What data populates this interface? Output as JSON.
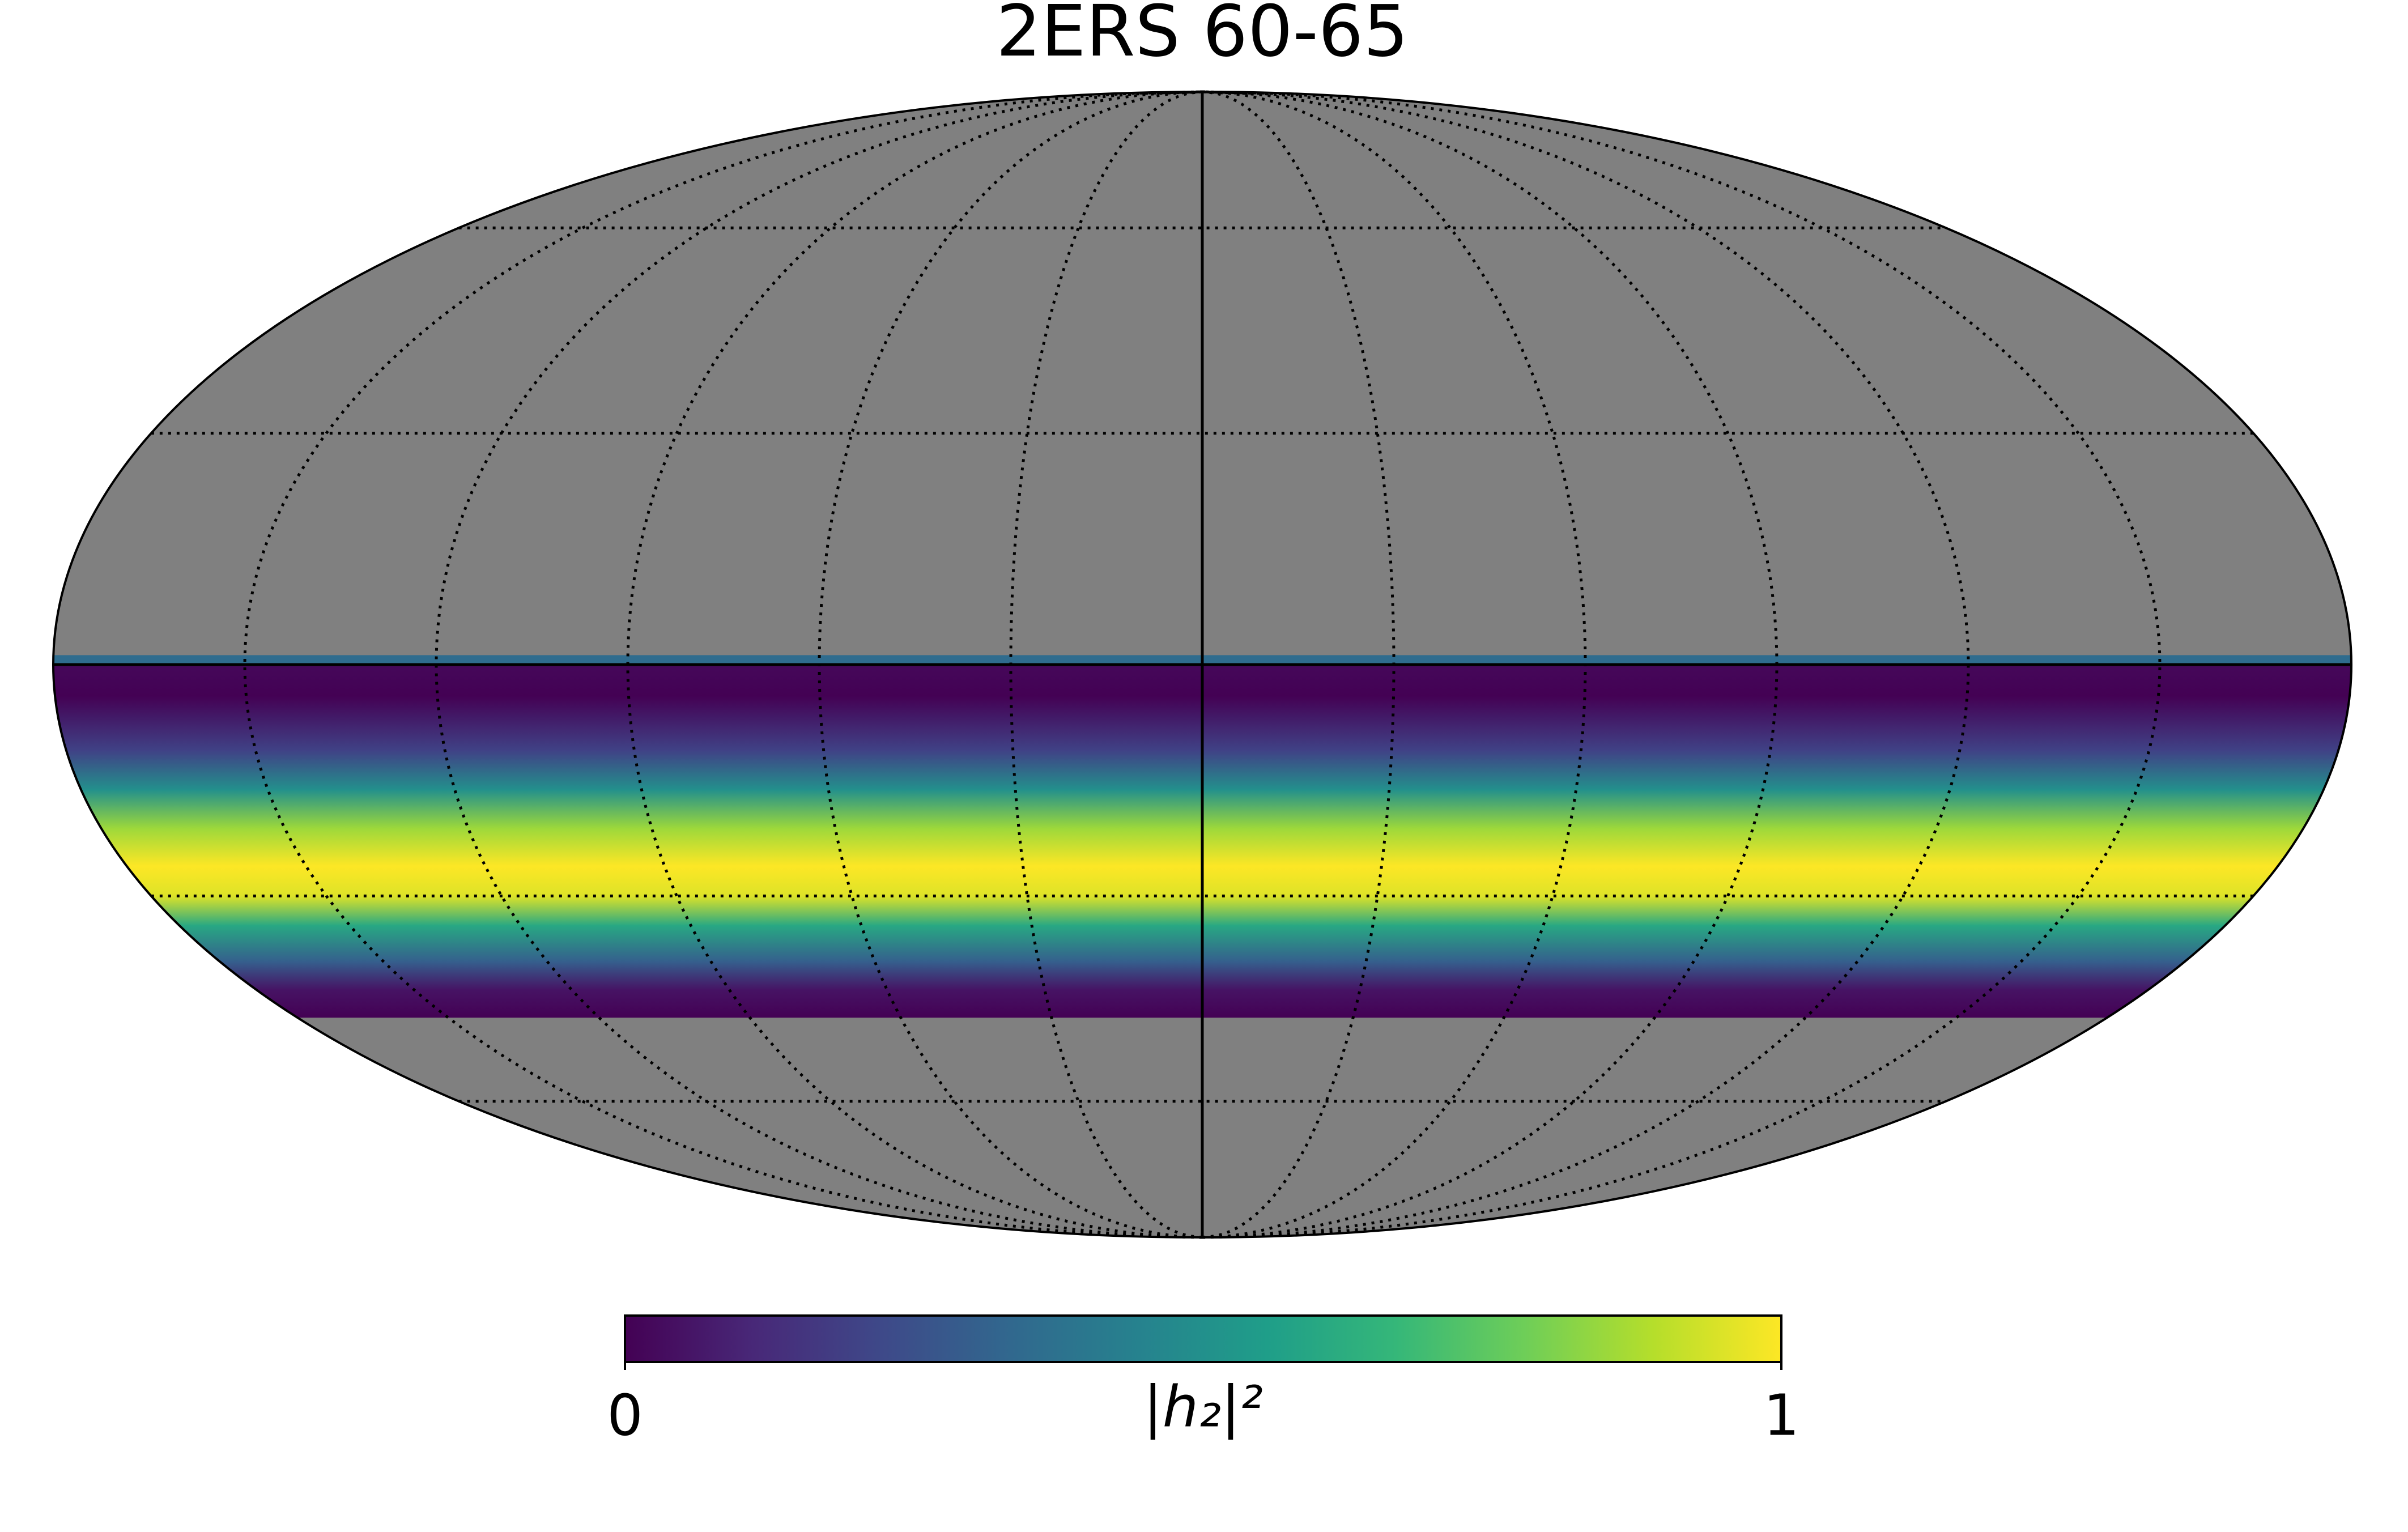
{
  "chart_data": {
    "type": "mollweide",
    "title": "2ERS 60-65",
    "projection": "mollweide",
    "background_color": "#808080",
    "graticule": true,
    "graticule_step": 30,
    "colormap": "viridis",
    "latitudes": [
      1.2,
      0.1,
      0,
      -4,
      -11,
      -16,
      -21,
      -26,
      -30,
      -34,
      -39,
      -43,
      -47
    ],
    "values": [
      0.35,
      0.35,
      0.02,
      0,
      0.2,
      0.5,
      0.85,
      1,
      0.95,
      0.6,
      0.3,
      0.05,
      0
    ],
    "colorbar": {
      "label": "|h₂|²",
      "lim": [
        0,
        1
      ],
      "ticks": [
        0,
        1
      ]
    }
  }
}
